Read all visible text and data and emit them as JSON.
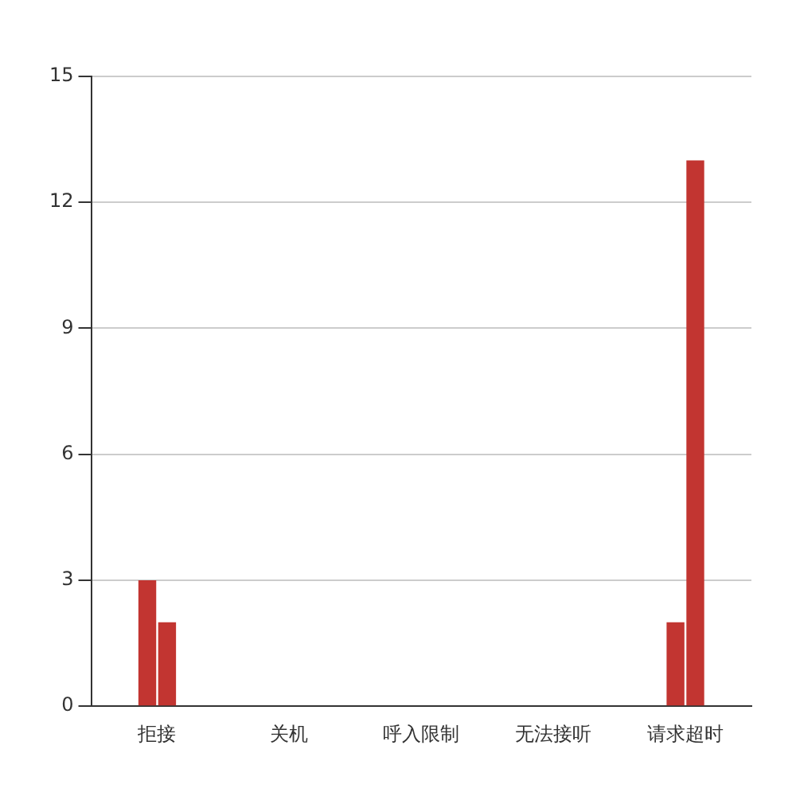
{
  "chart_data": {
    "type": "bar",
    "categories": [
      "拒接",
      "关机",
      "呼入限制",
      "无法接听",
      "请求超时"
    ],
    "series": [
      {
        "color": "#c23531",
        "values": [
          3,
          0,
          0,
          0,
          2
        ]
      },
      {
        "color": "#c23531",
        "values": [
          2,
          0,
          0,
          0,
          13
        ]
      }
    ],
    "ylim": [
      0,
      15
    ],
    "yticks": [
      0,
      3,
      6,
      9,
      12,
      15
    ],
    "grid": "y",
    "legend": false
  }
}
